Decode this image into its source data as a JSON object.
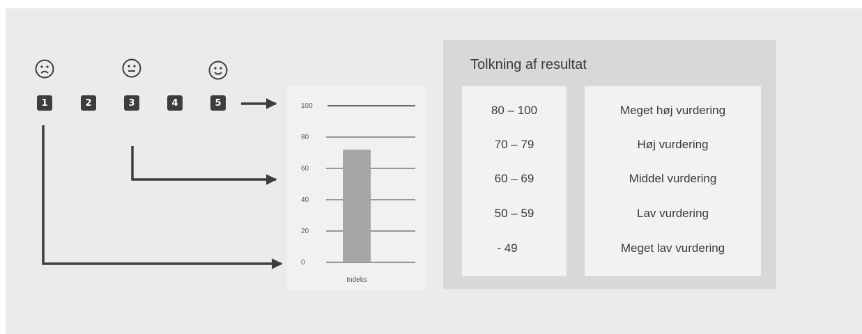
{
  "scale": {
    "items": [
      {
        "number": "1",
        "face": "sad-face-icon"
      },
      {
        "number": "2",
        "face": null
      },
      {
        "number": "3",
        "face": "neutral-face-icon"
      },
      {
        "number": "4",
        "face": null
      },
      {
        "number": "5",
        "face": "happy-face-icon"
      }
    ]
  },
  "chart_data": {
    "type": "bar",
    "categories": [
      "Indeks"
    ],
    "values": [
      72
    ],
    "ylim": [
      0,
      100
    ],
    "yticks": [
      "0",
      "20",
      "40",
      "60",
      "80",
      "100"
    ],
    "xlabel": "",
    "ylabel": "",
    "title": "",
    "grid": true,
    "colors": {
      "bar": "#a6a6a6",
      "gridline": "#3d3d3d"
    }
  },
  "interpretation": {
    "title": "Tolkning af resultat",
    "rows": [
      {
        "range": "80 – 100",
        "label": "Meget høj vurdering"
      },
      {
        "range": "70 – 79",
        "label": "Høj vurdering"
      },
      {
        "range": "60 – 69",
        "label": "Middel vurdering"
      },
      {
        "range": "50 – 59",
        "label": "Lav vurdering"
      },
      {
        "range": "- 49",
        "label": "Meget lav vurdering"
      }
    ]
  },
  "colors": {
    "background": "#ebebeb",
    "dark": "#3d3d3d",
    "panel": "#d8d8d8",
    "card": "#f2f2f2"
  }
}
